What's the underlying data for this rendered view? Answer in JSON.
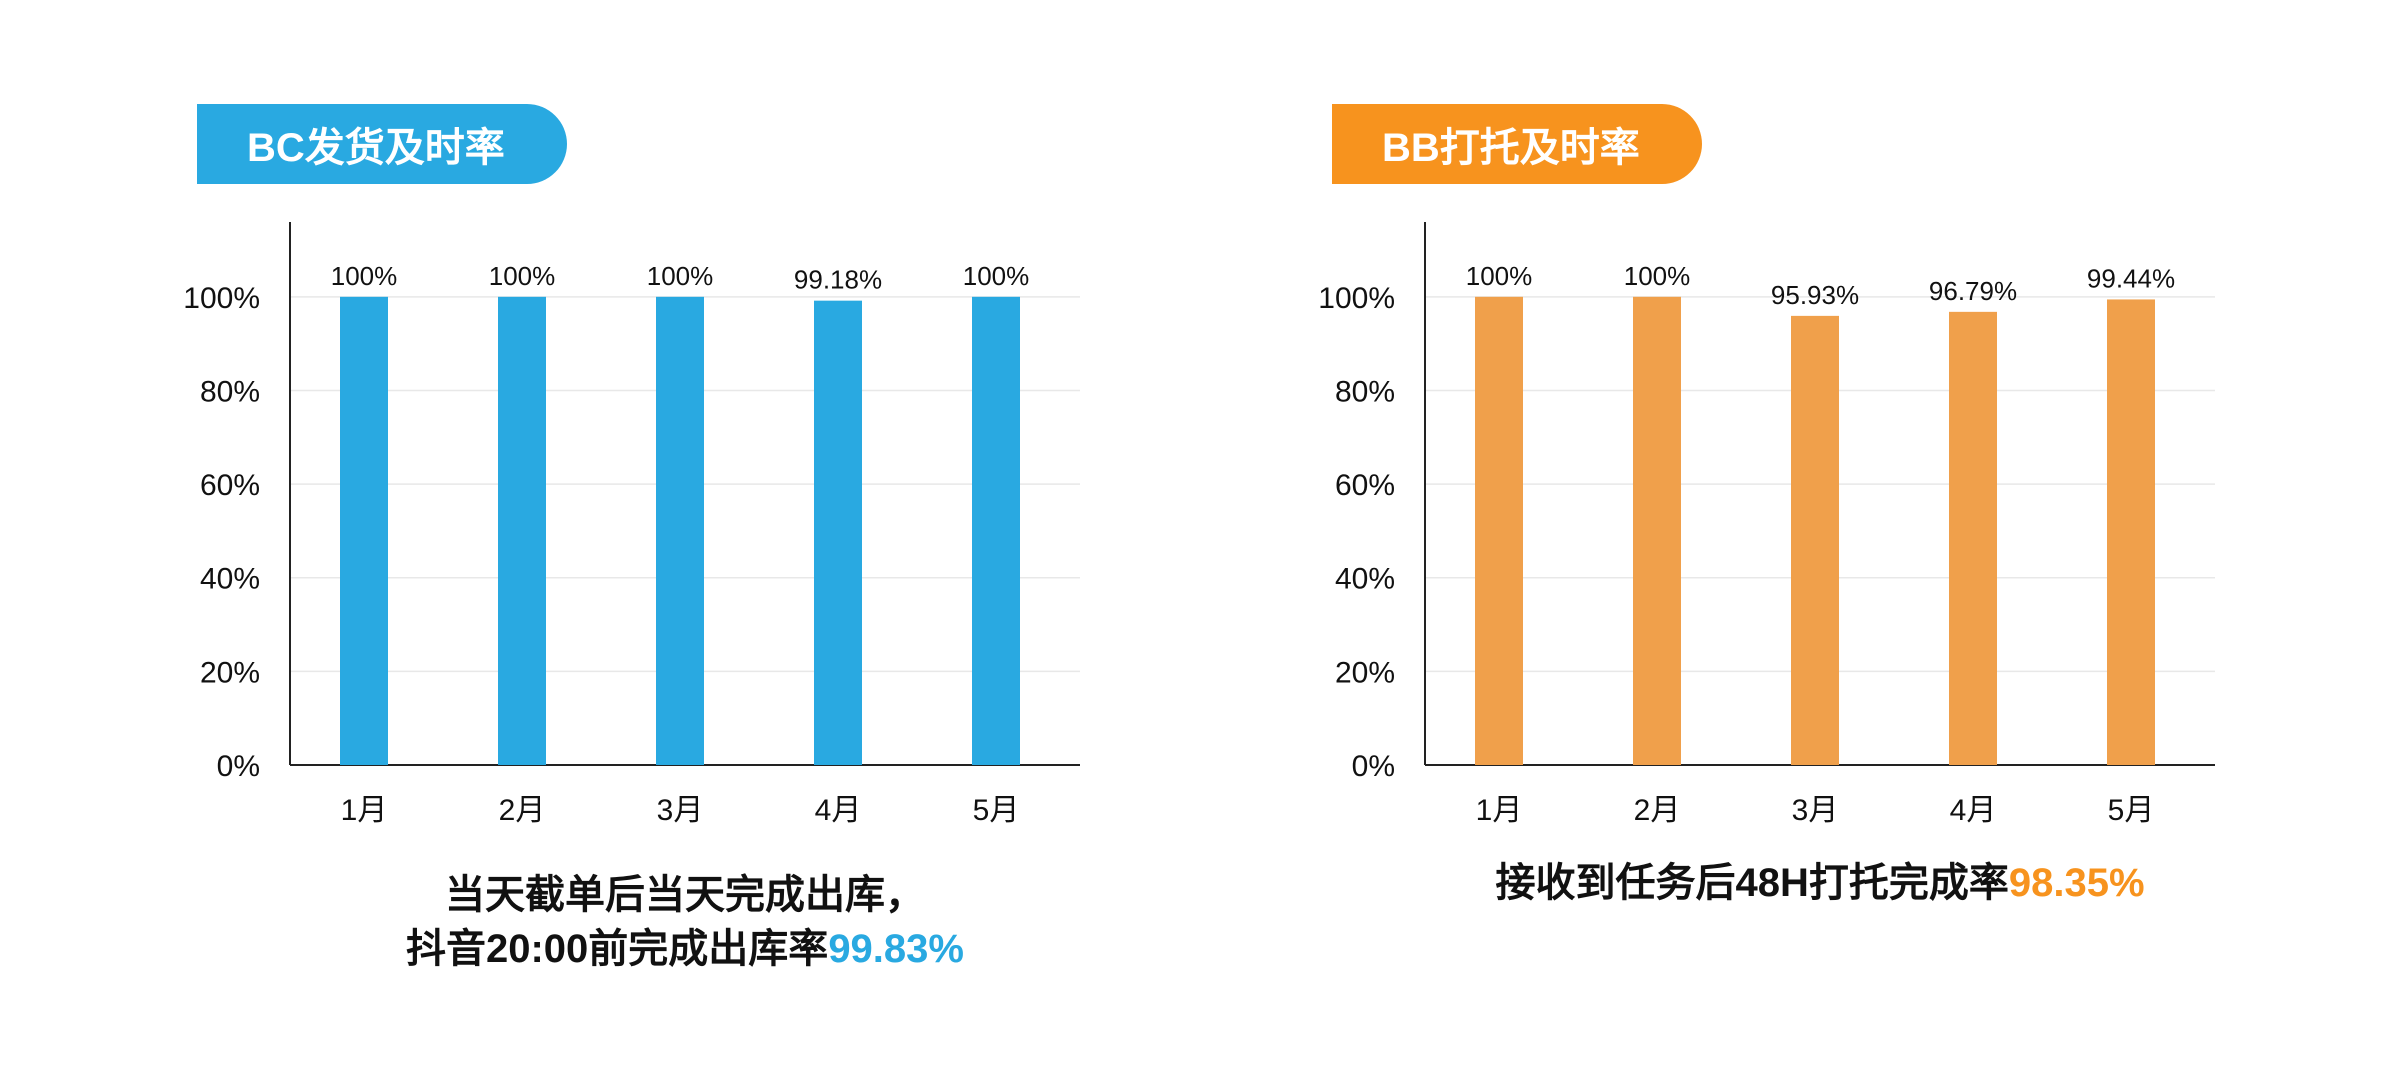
{
  "colors": {
    "blue": "#29a9e1",
    "orange": "#f0a04b",
    "orange_title": "#f7931e",
    "text": "#111111",
    "grid": "#e8e8e8"
  },
  "charts": [
    {
      "title": "BC发货及时率",
      "caption_line1": "当天截单后当天完成出库，",
      "caption_line2_prefix": "抖音20:00前完成出库率",
      "caption_highlight": "99.83%"
    },
    {
      "title": "BB打托及时率",
      "caption_line1": "",
      "caption_line2_prefix": "接收到任务后48H打托完成率",
      "caption_highlight": "98.35%"
    }
  ],
  "chart_data": [
    {
      "type": "bar",
      "title": "BC发货及时率",
      "categories": [
        "1月",
        "2月",
        "3月",
        "4月",
        "5月"
      ],
      "values": [
        100,
        100,
        100,
        99.18,
        100
      ],
      "labels": [
        "100%",
        "100%",
        "100%",
        "99.18%",
        "100%"
      ],
      "yticks": [
        "0%",
        "20%",
        "40%",
        "60%",
        "80%",
        "100%"
      ],
      "ylim": [
        0,
        110
      ],
      "grid": true,
      "color": "#29a9e1"
    },
    {
      "type": "bar",
      "title": "BB打托及时率",
      "categories": [
        "1月",
        "2月",
        "3月",
        "4月",
        "5月"
      ],
      "values": [
        100,
        100,
        95.93,
        96.79,
        99.44
      ],
      "labels": [
        "100%",
        "100%",
        "95.93%",
        "96.79%",
        "99.44%"
      ],
      "yticks": [
        "0%",
        "20%",
        "40%",
        "60%",
        "80%",
        "100%"
      ],
      "ylim": [
        0,
        110
      ],
      "grid": true,
      "color": "#f0a04b"
    }
  ]
}
